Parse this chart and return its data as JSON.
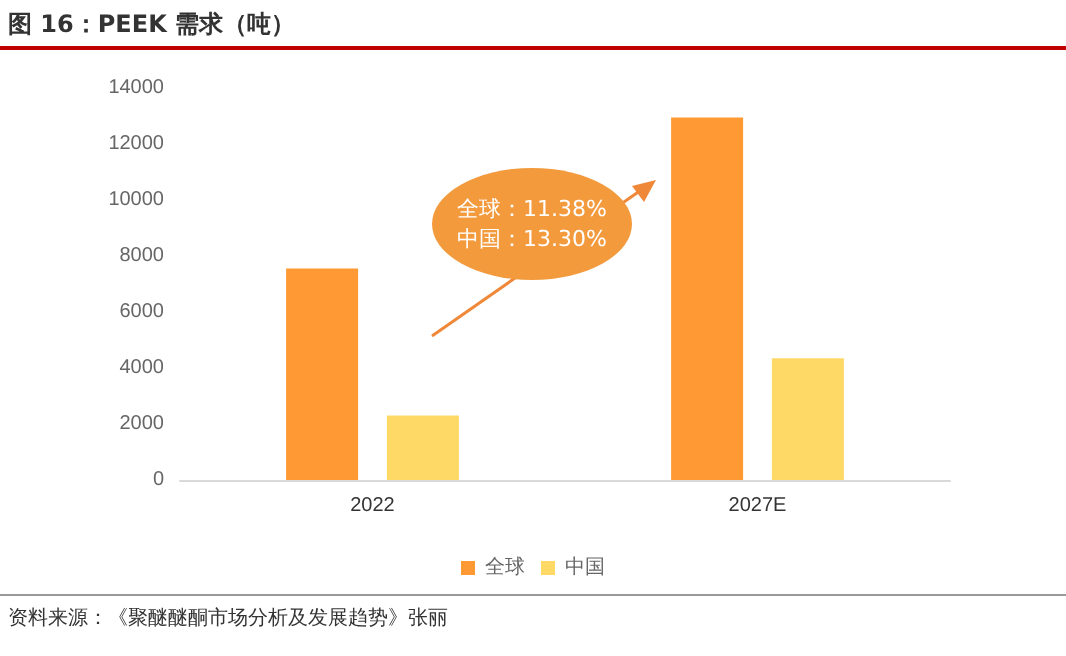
{
  "chart_data": {
    "type": "bar",
    "title": "图 16：PEEK 需求（吨）",
    "categories": [
      "2022",
      "2027E"
    ],
    "series": [
      {
        "name": "全球",
        "color": "#ff9933",
        "values": [
          7550,
          12950
        ]
      },
      {
        "name": "中国",
        "color": "#ffd966",
        "values": [
          2300,
          4350
        ]
      }
    ],
    "ylim": [
      0,
      14000
    ],
    "yticks": [
      0,
      2000,
      4000,
      6000,
      8000,
      10000,
      12000,
      14000
    ],
    "grid": false,
    "legend": "bottom",
    "annotations": [
      "全球：11.38%",
      "中国：13.30%",
      "资料来源：《聚醚醚酮市场分析及发展趋势》张丽"
    ]
  }
}
